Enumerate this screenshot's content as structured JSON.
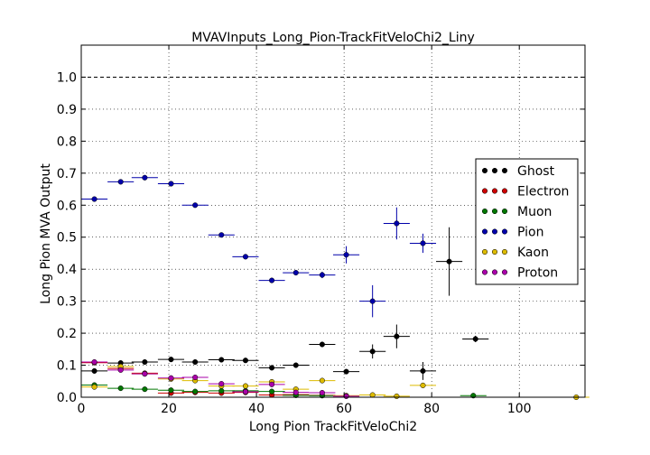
{
  "chart_data": {
    "type": "scatter",
    "title": "MVAVInputs_Long_Pion-TrackFitVeloChi2_Liny",
    "xlabel": "Long Pion TrackFitVeloChi2",
    "ylabel": "Long Pion MVA Output",
    "xlim": [
      0,
      115
    ],
    "ylim": [
      0,
      1.1
    ],
    "grid": true,
    "reference_line_y": 1.0,
    "x_ticks": [
      0,
      20,
      40,
      60,
      80,
      100
    ],
    "x_tick_labels": [
      "0",
      "20",
      "40",
      "60",
      "80",
      "100"
    ],
    "y_ticks": [
      0.0,
      0.1,
      0.2,
      0.3,
      0.4,
      0.5,
      0.6,
      0.7,
      0.8,
      0.9,
      1.0
    ],
    "y_tick_labels": [
      "0.0",
      "0.1",
      "0.2",
      "0.3",
      "0.4",
      "0.5",
      "0.6",
      "0.7",
      "0.8",
      "0.9",
      "1.0"
    ],
    "legend_position": "right",
    "series": [
      {
        "name": "Ghost",
        "color": "#000000",
        "points": [
          {
            "x": 3,
            "y": 0.082,
            "xerr": 3,
            "yerr": 0.003
          },
          {
            "x": 9,
            "y": 0.107,
            "xerr": 3,
            "yerr": 0.003
          },
          {
            "x": 14.5,
            "y": 0.11,
            "xerr": 3,
            "yerr": 0.003
          },
          {
            "x": 20.5,
            "y": 0.118,
            "xerr": 3,
            "yerr": 0.003
          },
          {
            "x": 26,
            "y": 0.11,
            "xerr": 3,
            "yerr": 0.003
          },
          {
            "x": 32,
            "y": 0.117,
            "xerr": 3,
            "yerr": 0.003
          },
          {
            "x": 37.5,
            "y": 0.115,
            "xerr": 3,
            "yerr": 0.003
          },
          {
            "x": 43.5,
            "y": 0.092,
            "xerr": 3,
            "yerr": 0.004
          },
          {
            "x": 49,
            "y": 0.1,
            "xerr": 3,
            "yerr": 0.004
          },
          {
            "x": 55,
            "y": 0.165,
            "xerr": 3,
            "yerr": 0.008
          },
          {
            "x": 60.5,
            "y": 0.08,
            "xerr": 3,
            "yerr": 0.006
          },
          {
            "x": 66.5,
            "y": 0.143,
            "xerr": 3,
            "yerr": 0.022
          },
          {
            "x": 72,
            "y": 0.19,
            "xerr": 3,
            "yerr": 0.037
          },
          {
            "x": 78,
            "y": 0.082,
            "xerr": 3,
            "yerr": 0.028
          },
          {
            "x": 84,
            "y": 0.424,
            "xerr": 3,
            "yerr": 0.107
          },
          {
            "x": 90,
            "y": 0.182,
            "xerr": 3,
            "yerr": 0.01
          }
        ]
      },
      {
        "name": "Electron",
        "color": "#cc0000",
        "points": [
          {
            "x": 3,
            "y": 0.108,
            "xerr": 3,
            "yerr": 0.003
          },
          {
            "x": 9,
            "y": 0.09,
            "xerr": 3,
            "yerr": 0.003
          },
          {
            "x": 14.5,
            "y": 0.075,
            "xerr": 3,
            "yerr": 0.003
          },
          {
            "x": 20.5,
            "y": 0.013,
            "xerr": 3,
            "yerr": 0.002
          },
          {
            "x": 26,
            "y": 0.015,
            "xerr": 3,
            "yerr": 0.002
          },
          {
            "x": 32,
            "y": 0.013,
            "xerr": 3,
            "yerr": 0.002
          },
          {
            "x": 37.5,
            "y": 0.015,
            "xerr": 3,
            "yerr": 0.002
          },
          {
            "x": 43.5,
            "y": 0.007,
            "xerr": 3,
            "yerr": 0.002
          },
          {
            "x": 49,
            "y": 0.008,
            "xerr": 3,
            "yerr": 0.002
          },
          {
            "x": 55,
            "y": 0.006,
            "xerr": 3,
            "yerr": 0.002
          }
        ]
      },
      {
        "name": "Muon",
        "color": "#007700",
        "points": [
          {
            "x": 3,
            "y": 0.038,
            "xerr": 3,
            "yerr": 0.002
          },
          {
            "x": 9,
            "y": 0.028,
            "xerr": 3,
            "yerr": 0.002
          },
          {
            "x": 14.5,
            "y": 0.025,
            "xerr": 3,
            "yerr": 0.002
          },
          {
            "x": 20.5,
            "y": 0.022,
            "xerr": 3,
            "yerr": 0.002
          },
          {
            "x": 26,
            "y": 0.018,
            "xerr": 3,
            "yerr": 0.002
          },
          {
            "x": 32,
            "y": 0.02,
            "xerr": 3,
            "yerr": 0.002
          },
          {
            "x": 37.5,
            "y": 0.02,
            "xerr": 3,
            "yerr": 0.002
          },
          {
            "x": 43.5,
            "y": 0.018,
            "xerr": 3,
            "yerr": 0.002
          },
          {
            "x": 49,
            "y": 0.006,
            "xerr": 3,
            "yerr": 0.002
          },
          {
            "x": 55,
            "y": 0.005,
            "xerr": 3,
            "yerr": 0.002
          },
          {
            "x": 89.5,
            "y": 0.005,
            "xerr": 3,
            "yerr": 0.002
          }
        ]
      },
      {
        "name": "Pion",
        "color": "#0000aa",
        "points": [
          {
            "x": 3,
            "y": 0.619,
            "xerr": 3,
            "yerr": 0.002
          },
          {
            "x": 9,
            "y": 0.673,
            "xerr": 3,
            "yerr": 0.002
          },
          {
            "x": 14.5,
            "y": 0.686,
            "xerr": 3,
            "yerr": 0.002
          },
          {
            "x": 20.5,
            "y": 0.667,
            "xerr": 3,
            "yerr": 0.002
          },
          {
            "x": 26,
            "y": 0.6,
            "xerr": 3,
            "yerr": 0.003
          },
          {
            "x": 32,
            "y": 0.507,
            "xerr": 3,
            "yerr": 0.003
          },
          {
            "x": 37.5,
            "y": 0.439,
            "xerr": 3,
            "yerr": 0.003
          },
          {
            "x": 43.5,
            "y": 0.365,
            "xerr": 3,
            "yerr": 0.004
          },
          {
            "x": 49,
            "y": 0.389,
            "xerr": 3,
            "yerr": 0.005
          },
          {
            "x": 55,
            "y": 0.382,
            "xerr": 3,
            "yerr": 0.01
          },
          {
            "x": 60.5,
            "y": 0.445,
            "xerr": 3,
            "yerr": 0.027
          },
          {
            "x": 66.5,
            "y": 0.3,
            "xerr": 3,
            "yerr": 0.05
          },
          {
            "x": 72,
            "y": 0.543,
            "xerr": 3,
            "yerr": 0.05
          },
          {
            "x": 78,
            "y": 0.481,
            "xerr": 3,
            "yerr": 0.03
          }
        ]
      },
      {
        "name": "Kaon",
        "color": "#ddbb00",
        "points": [
          {
            "x": 3,
            "y": 0.032,
            "xerr": 3,
            "yerr": 0.002
          },
          {
            "x": 9,
            "y": 0.096,
            "xerr": 3,
            "yerr": 0.003
          },
          {
            "x": 14.5,
            "y": 0.073,
            "xerr": 3,
            "yerr": 0.003
          },
          {
            "x": 20.5,
            "y": 0.057,
            "xerr": 3,
            "yerr": 0.003
          },
          {
            "x": 26,
            "y": 0.052,
            "xerr": 3,
            "yerr": 0.003
          },
          {
            "x": 32,
            "y": 0.035,
            "xerr": 3,
            "yerr": 0.003
          },
          {
            "x": 37.5,
            "y": 0.035,
            "xerr": 3,
            "yerr": 0.003
          },
          {
            "x": 43.5,
            "y": 0.048,
            "xerr": 3,
            "yerr": 0.004
          },
          {
            "x": 49,
            "y": 0.025,
            "xerr": 3,
            "yerr": 0.004
          },
          {
            "x": 55,
            "y": 0.052,
            "xerr": 3,
            "yerr": 0.006
          },
          {
            "x": 60.5,
            "y": 0.005,
            "xerr": 3,
            "yerr": 0.003
          },
          {
            "x": 66.5,
            "y": 0.007,
            "xerr": 3,
            "yerr": 0.004
          },
          {
            "x": 72,
            "y": 0.003,
            "xerr": 3,
            "yerr": 0.003
          },
          {
            "x": 78,
            "y": 0.037,
            "xerr": 3,
            "yerr": 0.006
          },
          {
            "x": 113,
            "y": 0.0,
            "xerr": 3,
            "yerr": 0.002
          }
        ]
      },
      {
        "name": "Proton",
        "color": "#aa00aa",
        "points": [
          {
            "x": 3,
            "y": 0.11,
            "xerr": 3,
            "yerr": 0.003
          },
          {
            "x": 9,
            "y": 0.085,
            "xerr": 3,
            "yerr": 0.003
          },
          {
            "x": 14.5,
            "y": 0.073,
            "xerr": 3,
            "yerr": 0.003
          },
          {
            "x": 20.5,
            "y": 0.06,
            "xerr": 3,
            "yerr": 0.003
          },
          {
            "x": 26,
            "y": 0.062,
            "xerr": 3,
            "yerr": 0.003
          },
          {
            "x": 32,
            "y": 0.042,
            "xerr": 3,
            "yerr": 0.003
          },
          {
            "x": 37.5,
            "y": 0.017,
            "xerr": 3,
            "yerr": 0.003
          },
          {
            "x": 43.5,
            "y": 0.04,
            "xerr": 3,
            "yerr": 0.004
          },
          {
            "x": 49,
            "y": 0.015,
            "xerr": 3,
            "yerr": 0.003
          },
          {
            "x": 55,
            "y": 0.014,
            "xerr": 3,
            "yerr": 0.003
          },
          {
            "x": 60.5,
            "y": 0.003,
            "xerr": 3,
            "yerr": 0.002
          }
        ]
      }
    ]
  }
}
